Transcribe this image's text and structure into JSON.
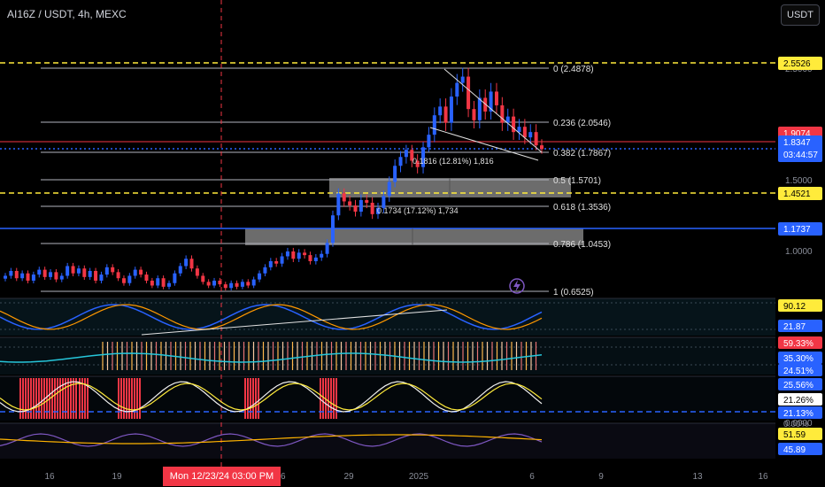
{
  "header": {
    "symbol": "AI16Z / USDT, 4h, MEXC",
    "currency": "USDT"
  },
  "colors": {
    "up": "#2962ff",
    "down": "#f23645",
    "fib": "#b2b5be",
    "yellow": "#ffeb3b",
    "blue_level": "#2962ff",
    "red_level": "#f23645",
    "accent_blue": "#2962ff"
  },
  "chart_data": {
    "type": "candlestick",
    "price_axis_labels": [
      "2.5000",
      "1.5000",
      "1.0000",
      "0.0000"
    ],
    "x_ticks": [
      "16",
      "19",
      "Mon 12/23/24   03:00 PM",
      "26",
      "29",
      "2025",
      "6",
      "9",
      "13",
      "16"
    ],
    "crosshair_time": "Mon 12/23/24   03:00 PM",
    "price_tags": [
      {
        "value": "2.5526",
        "style": "yellow"
      },
      {
        "value": "1.9074",
        "style": "red"
      },
      {
        "value": "1.8347",
        "style": "blue",
        "sub": "03:44:57"
      },
      {
        "value": "1.4521",
        "style": "yellow"
      },
      {
        "value": "1.1737",
        "style": "blue"
      }
    ],
    "fib_levels": [
      {
        "label": "0 (2.4878)",
        "price": 2.4878
      },
      {
        "label": "0.236 (2.0546)",
        "price": 2.0546
      },
      {
        "label": "0.382 (1.7867)",
        "price": 1.7867
      },
      {
        "label": "0.5 (1.5701)",
        "price": 1.5701
      },
      {
        "label": "0.618 (1.3536)",
        "price": 1.3536
      },
      {
        "label": "0.786 (1.0453)",
        "price": 1.0453
      },
      {
        "label": "1 (0.6525)",
        "price": 0.6525
      }
    ],
    "annotations": [
      "0.1816 (12.81%) 1,816",
      "0.1734 (17.12%) 1,734"
    ],
    "candles_close": [
      0.78,
      0.82,
      0.76,
      0.8,
      0.74,
      0.79,
      0.83,
      0.77,
      0.81,
      0.75,
      0.78,
      0.86,
      0.8,
      0.84,
      0.77,
      0.82,
      0.74,
      0.79,
      0.85,
      0.81,
      0.76,
      0.72,
      0.78,
      0.83,
      0.79,
      0.74,
      0.7,
      0.76,
      0.69,
      0.72,
      0.8,
      0.86,
      0.92,
      0.84,
      0.78,
      0.73,
      0.7,
      0.74,
      0.71,
      0.68,
      0.72,
      0.69,
      0.73,
      0.7,
      0.75,
      0.8,
      0.85,
      0.9,
      0.88,
      0.94,
      0.98,
      0.92,
      0.97,
      0.95,
      0.9,
      0.93,
      0.96,
      1.05,
      1.28,
      1.45,
      1.39,
      1.36,
      1.31,
      1.4,
      1.38,
      1.29,
      1.34,
      1.43,
      1.55,
      1.68,
      1.75,
      1.82,
      1.72,
      1.67,
      1.85,
      1.96,
      2.11,
      2.18,
      2.05,
      2.26,
      2.37,
      2.42,
      2.16,
      2.07,
      2.25,
      2.14,
      2.3,
      2.19,
      2.05,
      2.1,
      1.98,
      2.02,
      1.94,
      1.98,
      1.87,
      1.83
    ],
    "panels": [
      {
        "name": "oscillator-1",
        "labels": [
          {
            "value": "90.12",
            "style": "yellow"
          },
          {
            "value": "21.87",
            "style": "blue"
          }
        ]
      },
      {
        "name": "oscillator-2",
        "labels": [
          {
            "value": "59.33%",
            "style": "red"
          },
          {
            "value": "35.30%",
            "style": "blue"
          },
          {
            "value": "24.51%",
            "style": "blue"
          }
        ]
      },
      {
        "name": "oscillator-3",
        "labels": [
          {
            "value": "25.56%",
            "style": "blue"
          },
          {
            "value": "21.26%",
            "style": "white"
          },
          {
            "value": "21.13%",
            "style": "blue"
          },
          {
            "value": "0.00%",
            "style": "plain"
          }
        ]
      },
      {
        "name": "oscillator-4",
        "labels": [
          {
            "value": "51.59",
            "style": "yellow"
          },
          {
            "value": "45.89",
            "style": "blue"
          }
        ]
      }
    ]
  }
}
